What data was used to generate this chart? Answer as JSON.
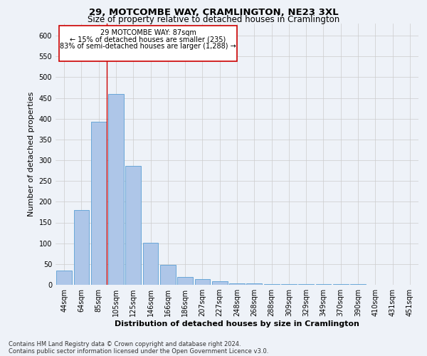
{
  "title": "29, MOTCOMBE WAY, CRAMLINGTON, NE23 3XL",
  "subtitle": "Size of property relative to detached houses in Cramlington",
  "xlabel": "Distribution of detached houses by size in Cramlington",
  "ylabel": "Number of detached properties",
  "footnote1": "Contains HM Land Registry data © Crown copyright and database right 2024.",
  "footnote2": "Contains public sector information licensed under the Open Government Licence v3.0.",
  "annotation_title": "29 MOTCOMBE WAY: 87sqm",
  "annotation_line1": "← 15% of detached houses are smaller (235)",
  "annotation_line2": "83% of semi-detached houses are larger (1,288) →",
  "bar_labels": [
    "44sqm",
    "64sqm",
    "85sqm",
    "105sqm",
    "125sqm",
    "146sqm",
    "166sqm",
    "186sqm",
    "207sqm",
    "227sqm",
    "248sqm",
    "268sqm",
    "288sqm",
    "309sqm",
    "329sqm",
    "349sqm",
    "370sqm",
    "390sqm",
    "410sqm",
    "431sqm",
    "451sqm"
  ],
  "bar_values": [
    35,
    180,
    393,
    460,
    287,
    101,
    48,
    19,
    13,
    8,
    3,
    3,
    2,
    1,
    1,
    1,
    1,
    1,
    0,
    0,
    0
  ],
  "bar_color": "#aec6e8",
  "bar_edge_color": "#5a9fd4",
  "vline_x": 2.48,
  "vline_color": "#cc0000",
  "ylim": [
    0,
    630
  ],
  "yticks": [
    0,
    50,
    100,
    150,
    200,
    250,
    300,
    350,
    400,
    450,
    500,
    550,
    600
  ],
  "grid_color": "#cccccc",
  "bg_color": "#eef2f8",
  "annotation_box_color": "#ffffff",
  "annotation_box_edge": "#cc0000",
  "title_fontsize": 9.5,
  "subtitle_fontsize": 8.5,
  "axis_label_fontsize": 8,
  "tick_fontsize": 7,
  "annotation_fontsize": 7,
  "footnote_fontsize": 6
}
